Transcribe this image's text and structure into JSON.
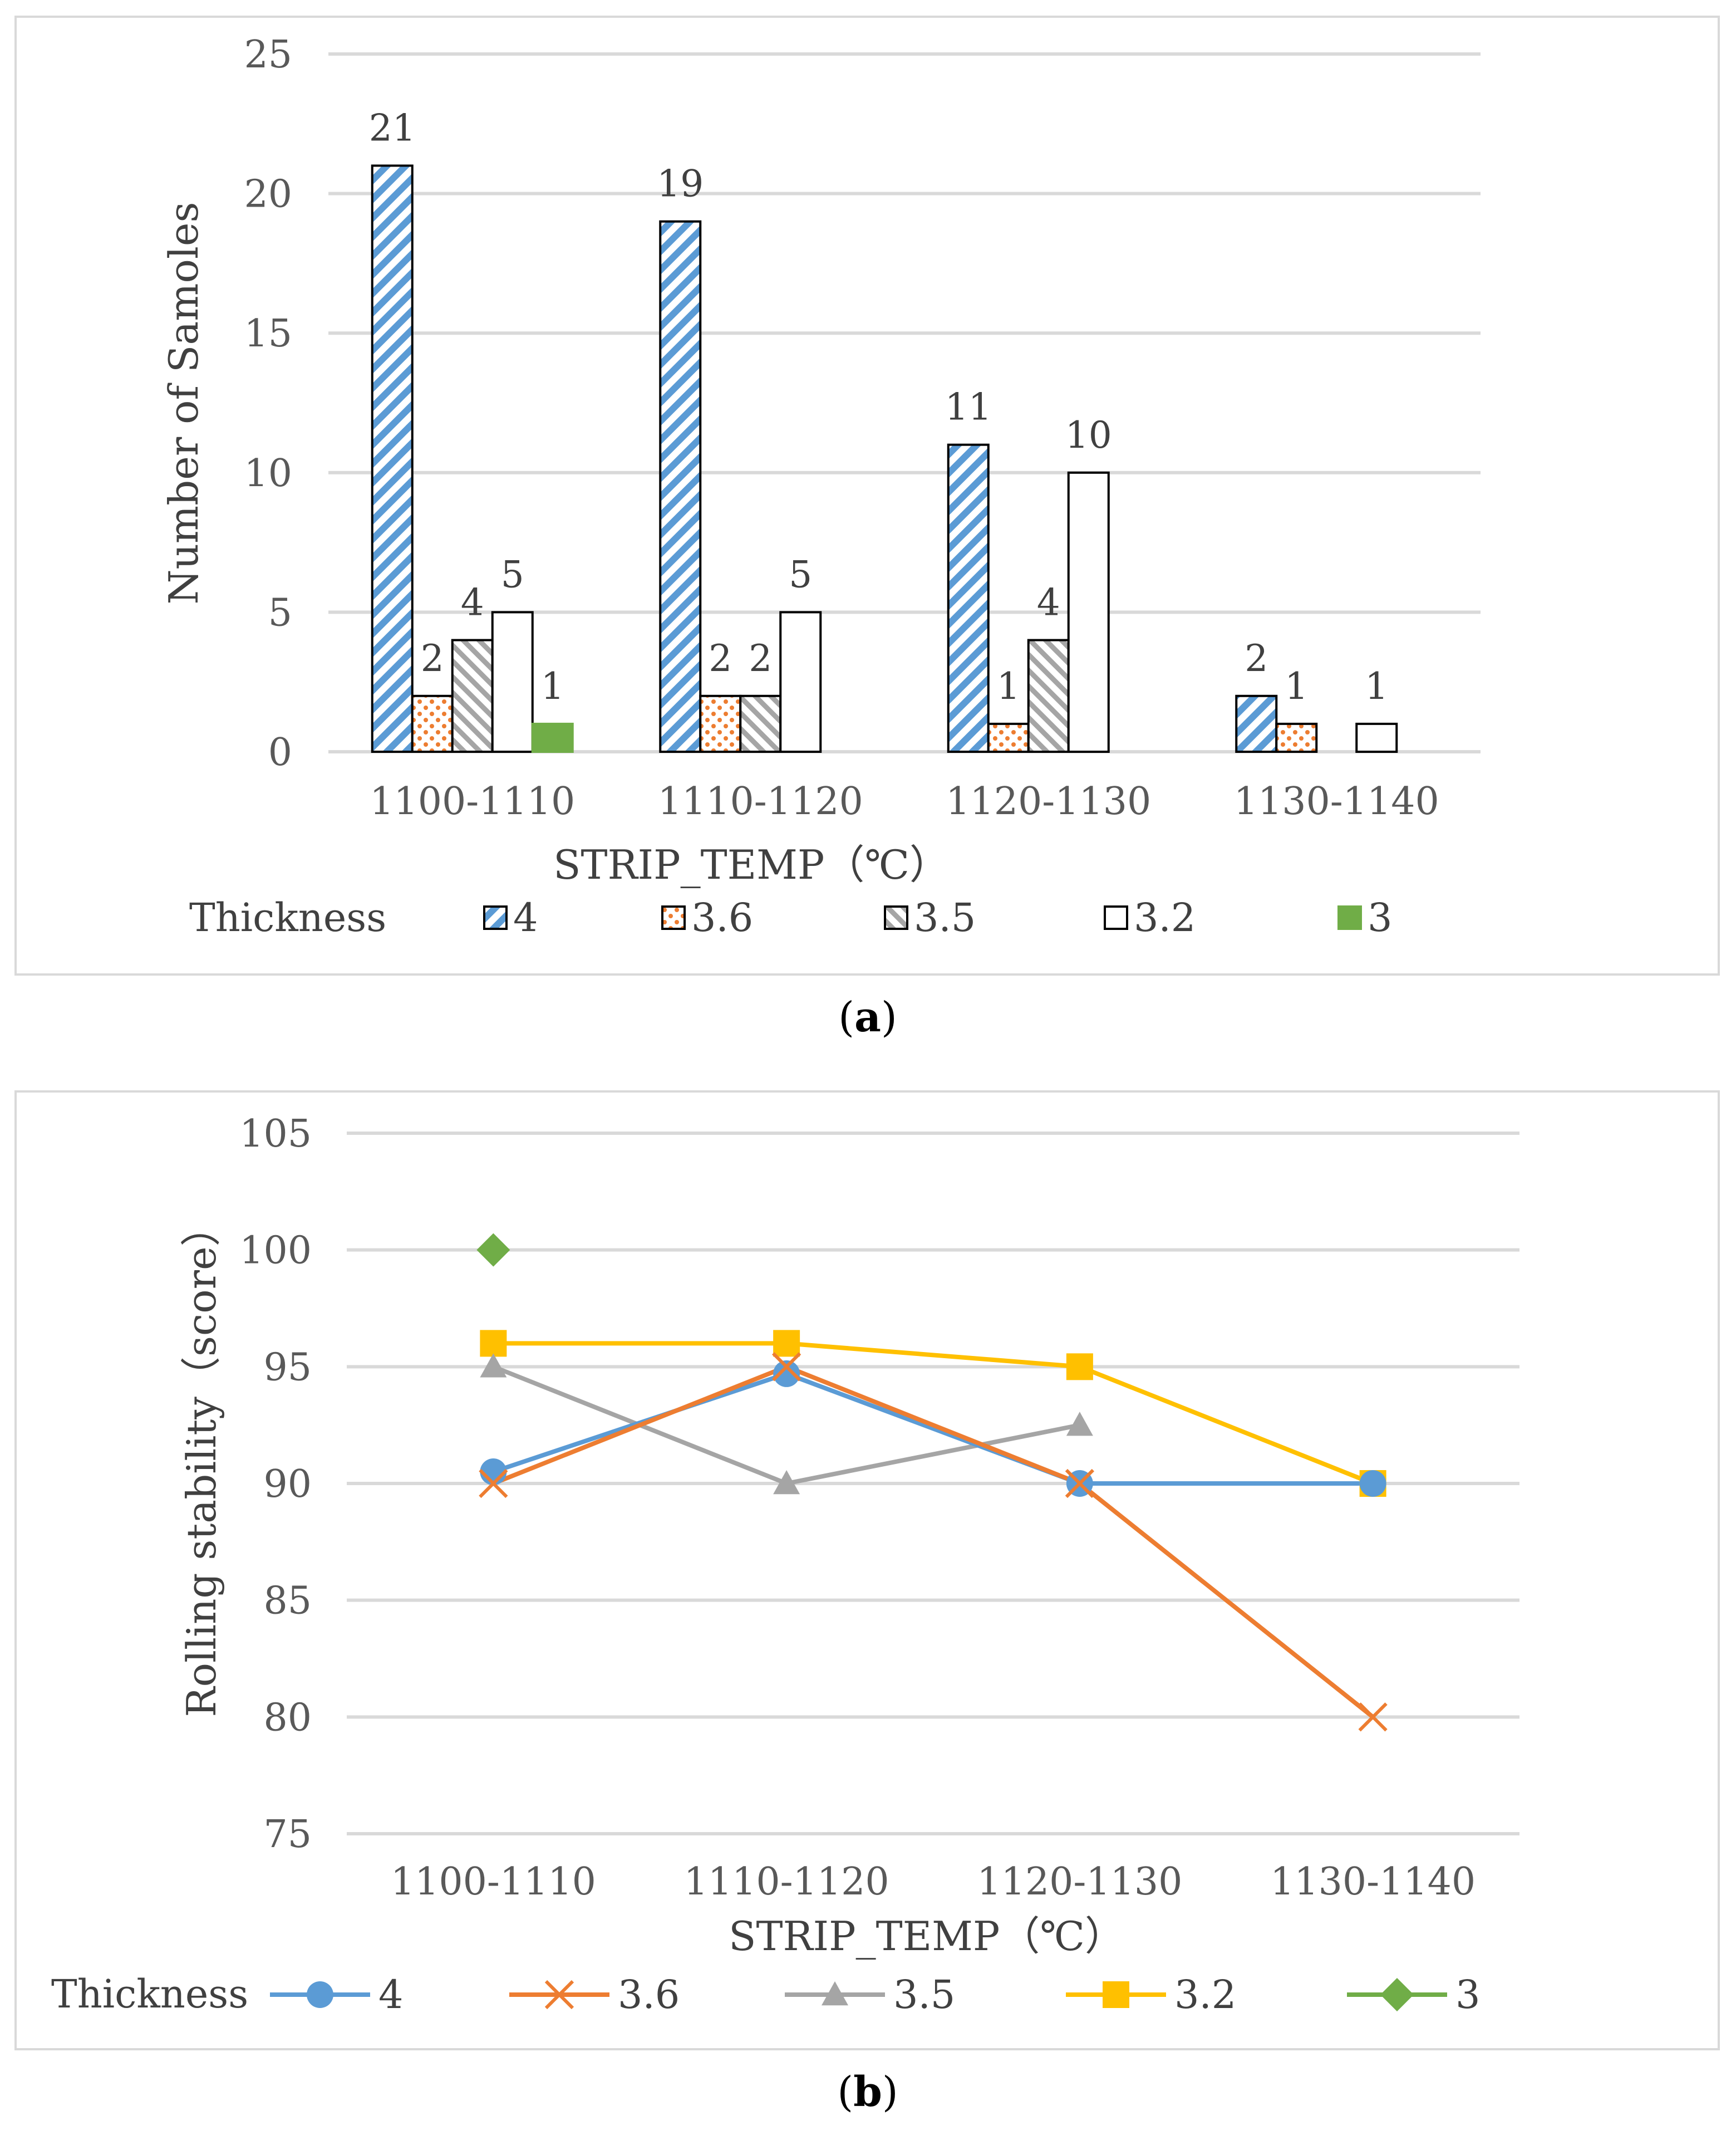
{
  "colors": {
    "s4": "#5b9bd5",
    "s36": "#ed7d31",
    "s35": "#a5a5a5",
    "s32": "#ffc000",
    "s3": "#70ad47"
  },
  "chart_data": [
    {
      "type": "bar",
      "panel": "a",
      "caption": {
        "open": "(",
        "letter": "a",
        "close": ")"
      },
      "categories": [
        "1100-1110",
        "1110-1120",
        "1120-1130",
        "1130-1140"
      ],
      "xlabel": "STRIP_TEMP（℃）",
      "ylabel": "Number of Samoles",
      "ylim": [
        0,
        25
      ],
      "yticks": [
        "0",
        "5",
        "10",
        "15",
        "20",
        "25"
      ],
      "legend_title": "Thickness",
      "series": [
        {
          "name": "4",
          "pattern": "hatch",
          "values": [
            21,
            19,
            11,
            2
          ]
        },
        {
          "name": "3.6",
          "pattern": "dots",
          "values": [
            2,
            2,
            1,
            1
          ]
        },
        {
          "name": "3.5",
          "pattern": "diag",
          "values": [
            4,
            2,
            4,
            null
          ]
        },
        {
          "name": "3.2",
          "pattern": "empty",
          "values": [
            5,
            5,
            10,
            1
          ]
        },
        {
          "name": "3",
          "pattern": "solid",
          "values": [
            1,
            null,
            null,
            null
          ]
        }
      ],
      "legend_labels": [
        "4",
        "3.6",
        "3.5",
        "3.2",
        "3"
      ],
      "data_labels": [
        [
          "21",
          "19",
          "11",
          "2"
        ],
        [
          "2",
          "2",
          "1",
          "1"
        ],
        [
          "4",
          "2",
          "4",
          ""
        ],
        [
          "5",
          "5",
          "10",
          "1"
        ],
        [
          "1",
          "",
          "",
          ""
        ]
      ]
    },
    {
      "type": "line",
      "panel": "b",
      "caption": {
        "open": "(",
        "letter": "b",
        "close": ")"
      },
      "categories": [
        "1100-1110",
        "1110-1120",
        "1120-1130",
        "1130-1140"
      ],
      "xlabel": "STRIP_TEMP（℃）",
      "ylabel": "Rolling stability（score）",
      "ylim": [
        75,
        105
      ],
      "yticks": [
        "75",
        "80",
        "85",
        "90",
        "95",
        "100",
        "105"
      ],
      "legend_title": "Thickness",
      "series": [
        {
          "name": "4",
          "marker": "circle",
          "values": [
            90.5,
            94.7,
            90,
            90
          ]
        },
        {
          "name": "3.6",
          "marker": "x",
          "values": [
            90,
            95,
            90,
            80
          ]
        },
        {
          "name": "3.5",
          "marker": "triangle",
          "values": [
            95,
            90,
            92.5,
            null
          ]
        },
        {
          "name": "3.2",
          "marker": "square",
          "values": [
            96,
            96,
            95,
            90
          ]
        },
        {
          "name": "3",
          "marker": "diamond",
          "values": [
            100,
            null,
            null,
            null
          ]
        }
      ],
      "legend_labels": [
        "4",
        "3.6",
        "3.5",
        "3.2",
        "3"
      ]
    }
  ]
}
